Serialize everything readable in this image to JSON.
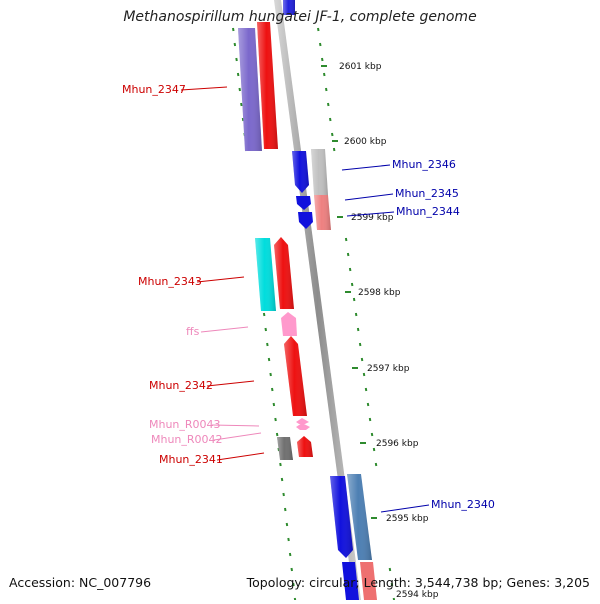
{
  "title": "Methanospirillum hungatei JF-1, complete genome",
  "footer": {
    "accession": "Accession: NC_007796",
    "topology": "Topology: circular; Length: 3,544,738 bp; Genes: 3,205"
  },
  "colors": {
    "backbone": "#9a9a9a",
    "ticks": "#2e8b2e",
    "forward_label": "#cc0000",
    "reverse_label": "#0000aa",
    "rna_label": "#ee88bb"
  },
  "scale_labels": [
    "2601 kbp",
    "2600 kbp",
    "2599 kbp",
    "2598 kbp",
    "2597 kbp",
    "2596 kbp",
    "2595 kbp",
    "2594 kbp"
  ],
  "features": {
    "f2347a": {
      "label": "Mhun_2347",
      "color": "#7b68cc"
    },
    "f2347b": {
      "label": "",
      "color": "#ee1111"
    },
    "f2346": {
      "label": "Mhun_2346",
      "color": "#1111dd"
    },
    "f2346b": {
      "label": "",
      "color": "#c0c0c0"
    },
    "f2345": {
      "label": "Mhun_2345",
      "color": "#1111dd"
    },
    "f2344": {
      "label": "Mhun_2344",
      "color": "#1111dd"
    },
    "f2344b": {
      "label": "",
      "color": "#ee8080"
    },
    "f2343": {
      "label": "Mhun_2343",
      "color": "#00dddd"
    },
    "f2343b": {
      "label": "",
      "color": "#ee1111"
    },
    "fffs": {
      "label": "ffs",
      "color": "#ff99cc"
    },
    "f2342": {
      "label": "Mhun_2342",
      "color": "#ee1111"
    },
    "fR0043": {
      "label": "Mhun_R0043",
      "color": "#ff99cc"
    },
    "fR0042": {
      "label": "Mhun_R0042",
      "color": "#ff99cc"
    },
    "f2341": {
      "label": "Mhun_2341",
      "color": "#ee1111"
    },
    "f2341b": {
      "label": "",
      "color": "#707070"
    },
    "f2340": {
      "label": "Mhun_2340",
      "color": "#1111dd"
    },
    "f2340b": {
      "label": "",
      "color": "#4d7fb3"
    }
  }
}
